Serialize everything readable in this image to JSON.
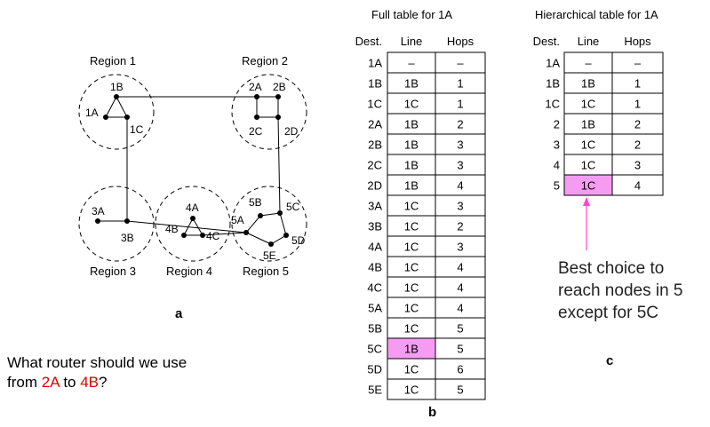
{
  "network": {
    "regions": [
      {
        "label": "Region 1"
      },
      {
        "label": "Region 2"
      },
      {
        "label": "Region 3"
      },
      {
        "label": "Region 4"
      },
      {
        "label": "Region 5"
      }
    ],
    "nodes": {
      "1A": "1A",
      "1B": "1B",
      "1C": "1C",
      "2A": "2A",
      "2B": "2B",
      "2C": "2C",
      "2D": "2D",
      "3A": "3A",
      "3B": "3B",
      "4A": "4A",
      "4B": "4B",
      "4C": "4C",
      "5A": "5A",
      "5B": "5B",
      "5C": "5C",
      "5D": "5D",
      "5E": "5E"
    },
    "caption": "a"
  },
  "full_table": {
    "title": "Full table for 1A",
    "headers": [
      "Dest.",
      "Line",
      "Hops"
    ],
    "rows": [
      [
        "1A",
        "–",
        "–"
      ],
      [
        "1B",
        "1B",
        "1"
      ],
      [
        "1C",
        "1C",
        "1"
      ],
      [
        "2A",
        "1B",
        "2"
      ],
      [
        "2B",
        "1B",
        "3"
      ],
      [
        "2C",
        "1B",
        "3"
      ],
      [
        "2D",
        "1B",
        "4"
      ],
      [
        "3A",
        "1C",
        "3"
      ],
      [
        "3B",
        "1C",
        "2"
      ],
      [
        "4A",
        "1C",
        "3"
      ],
      [
        "4B",
        "1C",
        "4"
      ],
      [
        "4C",
        "1C",
        "4"
      ],
      [
        "5A",
        "1C",
        "4"
      ],
      [
        "5B",
        "1C",
        "5"
      ],
      [
        "5C",
        "1B",
        "5"
      ],
      [
        "5D",
        "1C",
        "6"
      ],
      [
        "5E",
        "1C",
        "5"
      ]
    ],
    "highlight_row": 14,
    "caption": "b"
  },
  "hier_table": {
    "title": "Hierarchical table for 1A",
    "headers": [
      "Dest.",
      "Line",
      "Hops"
    ],
    "rows": [
      [
        "1A",
        "–",
        "–"
      ],
      [
        "1B",
        "1B",
        "1"
      ],
      [
        "1C",
        "1C",
        "1"
      ],
      [
        "2",
        "1B",
        "2"
      ],
      [
        "3",
        "1C",
        "2"
      ],
      [
        "4",
        "1C",
        "3"
      ],
      [
        "5",
        "1C",
        "4"
      ]
    ],
    "highlight_row": 6,
    "caption": "c"
  },
  "annotation": {
    "lines": [
      "Best choice to",
      "reach nodes in 5",
      "except for 5C"
    ],
    "arrow_color": "#ff44cc"
  },
  "question": {
    "prefix": "What router should we use",
    "line2_start": "from ",
    "src": "2A",
    "mid": " to ",
    "dst": "4B",
    "suffix": "?"
  },
  "colors": {
    "highlight": "#f59cf2",
    "accent_text": "#e00000"
  }
}
